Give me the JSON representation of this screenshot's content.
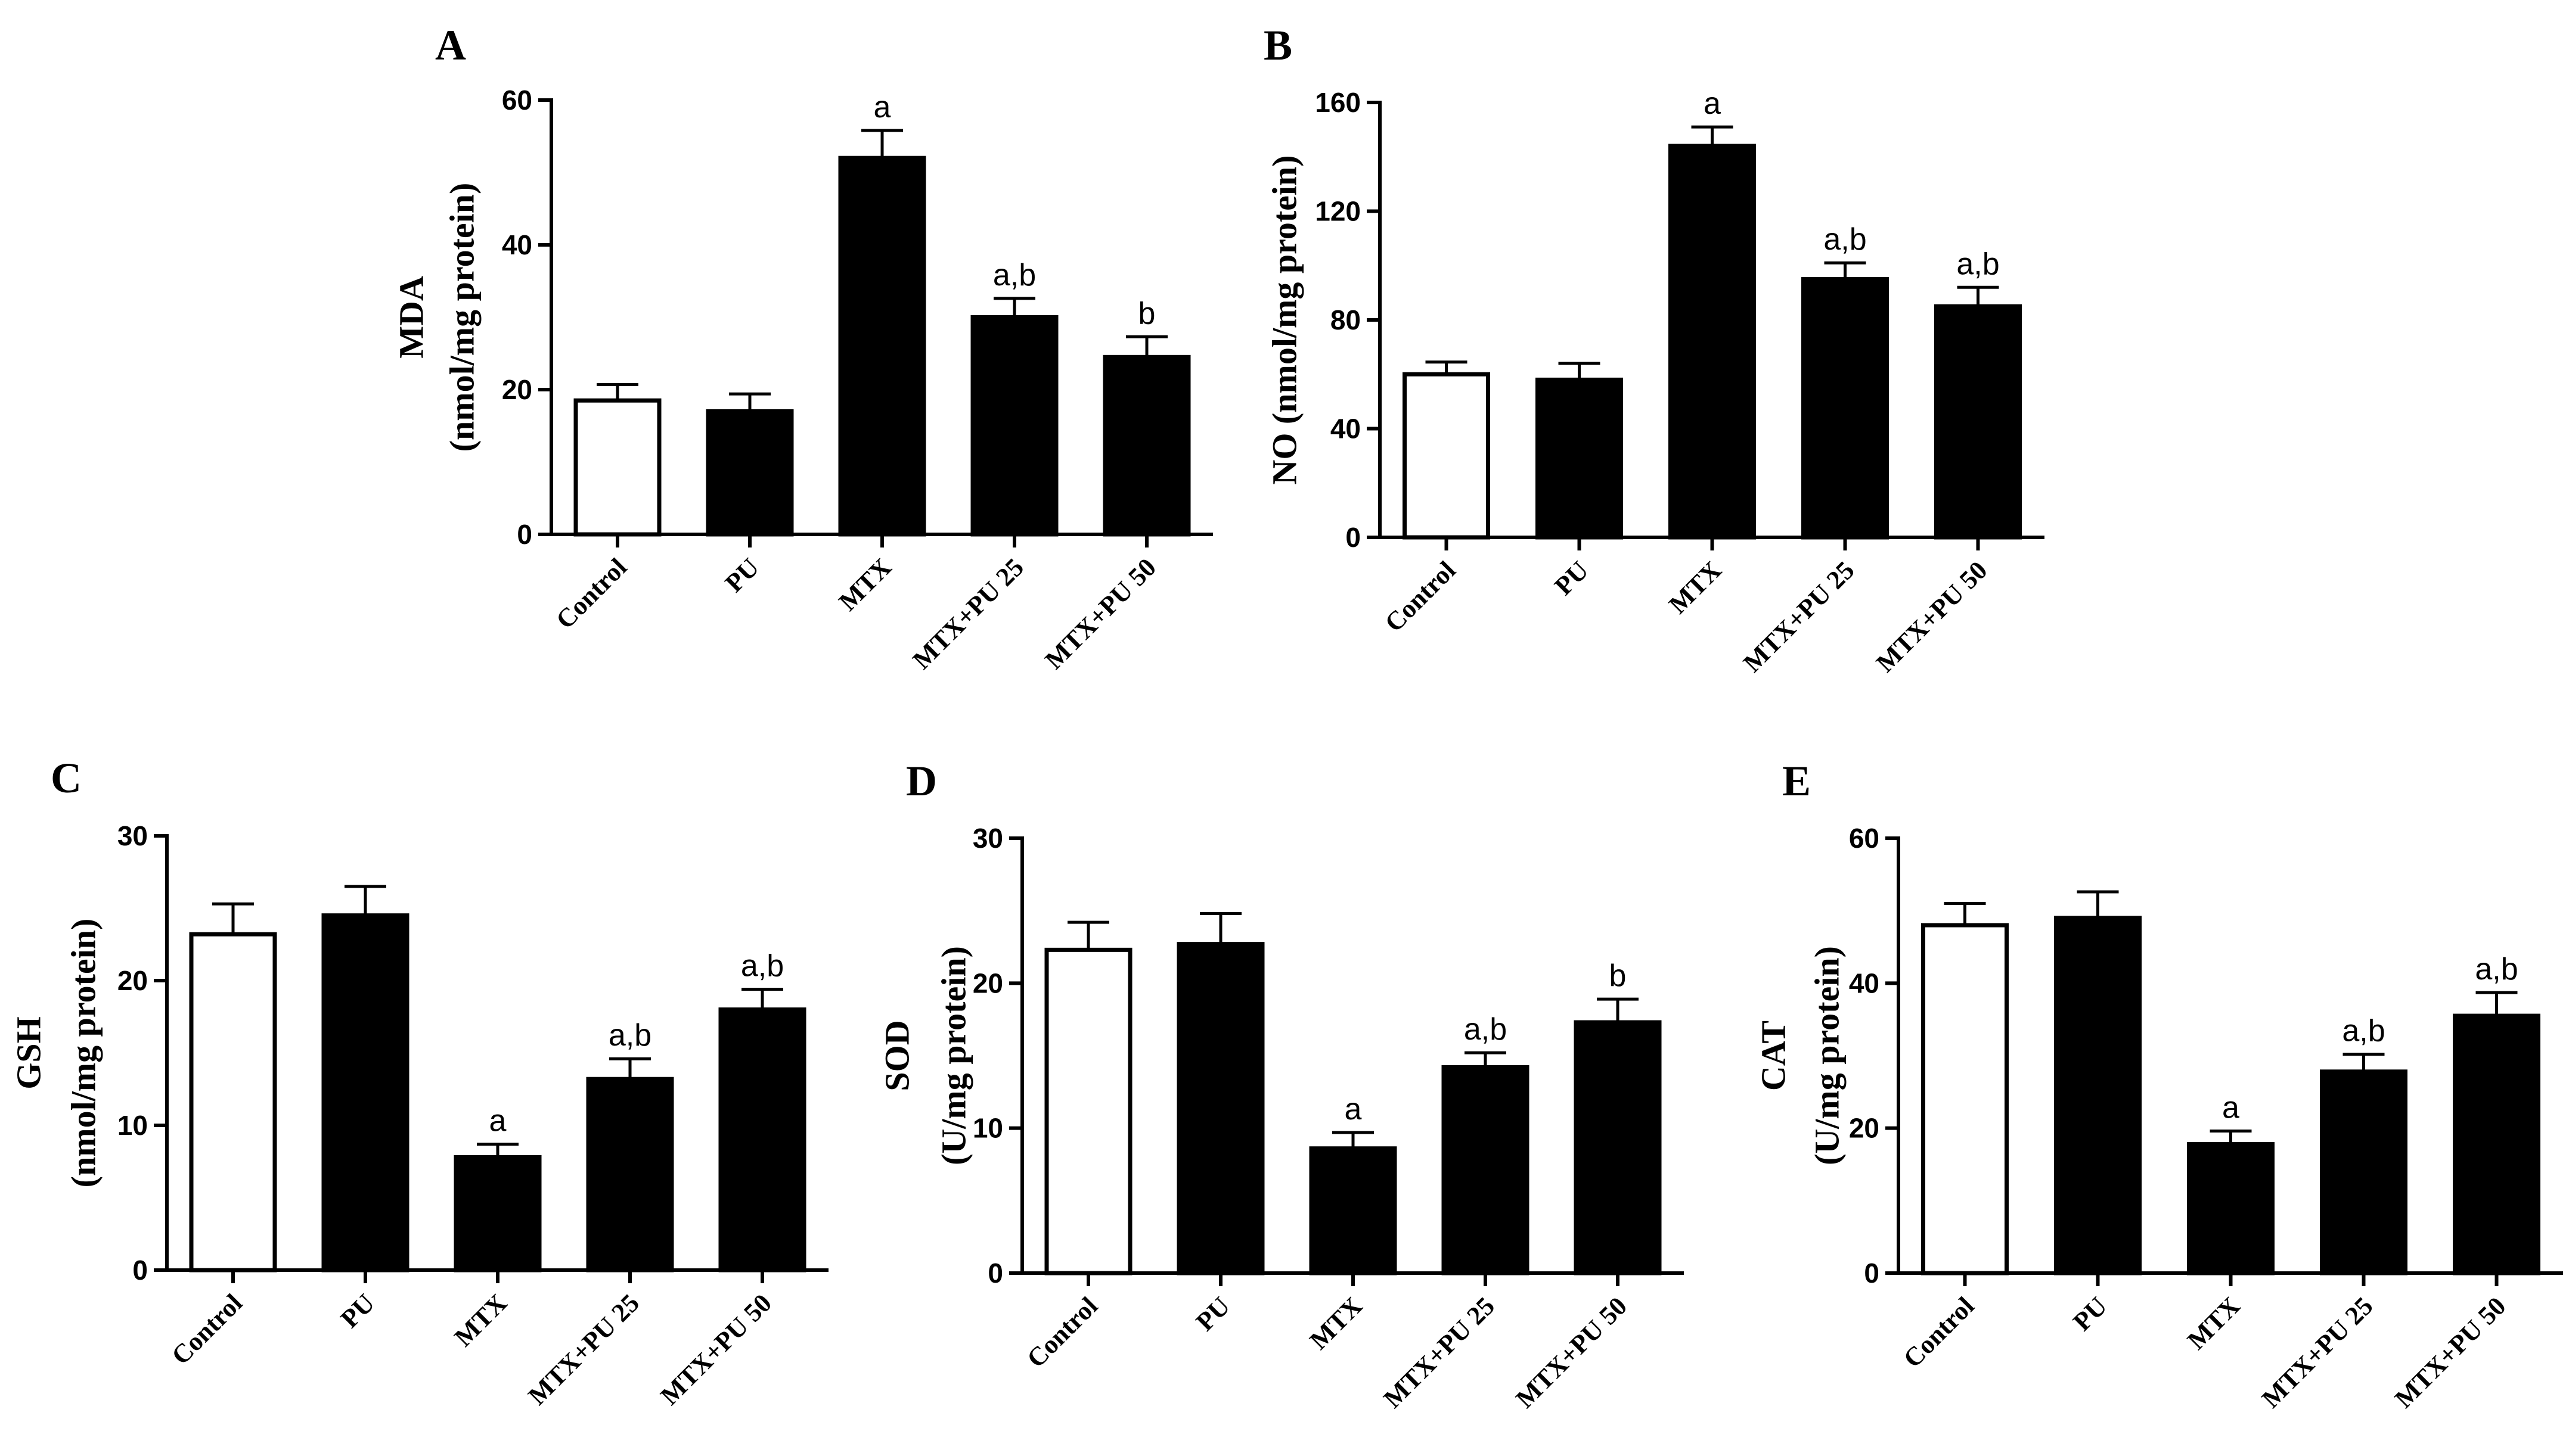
{
  "chart_data": [
    {
      "id": "A",
      "type": "bar",
      "panel_label": "A",
      "ylabel_lines": [
        "MDA",
        "(nmol/mg protein)"
      ],
      "categories": [
        "Control",
        "PU",
        "MTX",
        "MTX+PU 25",
        "MTX+PU 50"
      ],
      "values": [
        18.5,
        17,
        52,
        30,
        24.5
      ],
      "errors": [
        2.2,
        2.4,
        3.8,
        2.6,
        2.8
      ],
      "significance": [
        "",
        "",
        "a",
        "a,b",
        "b"
      ],
      "ylim": [
        0,
        60
      ],
      "yticks": [
        0,
        20,
        40,
        60
      ],
      "bar_styles": [
        "open",
        "filled",
        "filled",
        "filled",
        "filled"
      ]
    },
    {
      "id": "B",
      "type": "bar",
      "panel_label": "B",
      "ylabel_lines": [
        "NO (nmol/mg protein)"
      ],
      "categories": [
        "Control",
        "PU",
        "MTX",
        "MTX+PU 25",
        "MTX+PU 50"
      ],
      "values": [
        60,
        58,
        144,
        95,
        85
      ],
      "errors": [
        4.5,
        6,
        7,
        6,
        7
      ],
      "significance": [
        "",
        "",
        "a",
        "a,b",
        "a,b"
      ],
      "ylim": [
        0,
        160
      ],
      "yticks": [
        0,
        40,
        80,
        120,
        160
      ],
      "bar_styles": [
        "open",
        "filled",
        "filled",
        "filled",
        "filled"
      ]
    },
    {
      "id": "C",
      "type": "bar",
      "panel_label": "C",
      "ylabel_lines": [
        "GSH",
        "(nmol/mg protein)"
      ],
      "categories": [
        "Control",
        "PU",
        "MTX",
        "MTX+PU 25",
        "MTX+PU 50"
      ],
      "values": [
        23.2,
        24.5,
        7.8,
        13.2,
        18
      ],
      "errors": [
        2.1,
        2,
        0.9,
        1.4,
        1.4
      ],
      "significance": [
        "",
        "",
        "a",
        "a,b",
        "a,b"
      ],
      "ylim": [
        0,
        30
      ],
      "yticks": [
        0,
        10,
        20,
        30
      ],
      "bar_styles": [
        "open",
        "filled",
        "filled",
        "filled",
        "filled"
      ]
    },
    {
      "id": "D",
      "type": "bar",
      "panel_label": "D",
      "ylabel_lines": [
        "SOD",
        "(U/mg protein)"
      ],
      "categories": [
        "Control",
        "PU",
        "MTX",
        "MTX+PU 25",
        "MTX+PU 50"
      ],
      "values": [
        22.3,
        22.7,
        8.6,
        14.2,
        17.3
      ],
      "errors": [
        1.9,
        2.1,
        1.1,
        1,
        1.6
      ],
      "significance": [
        "",
        "",
        "a",
        "a,b",
        "b"
      ],
      "ylim": [
        0,
        30
      ],
      "yticks": [
        0,
        10,
        20,
        30
      ],
      "bar_styles": [
        "open",
        "filled",
        "filled",
        "filled",
        "filled"
      ]
    },
    {
      "id": "E",
      "type": "bar",
      "panel_label": "E",
      "ylabel_lines": [
        "CAT",
        "(U/mg protein)"
      ],
      "categories": [
        "Control",
        "PU",
        "MTX",
        "MTX+PU 25",
        "MTX+PU 50"
      ],
      "values": [
        48,
        49,
        17.8,
        27.8,
        35.5
      ],
      "errors": [
        3,
        3.6,
        1.8,
        2.4,
        3.2
      ],
      "significance": [
        "",
        "",
        "a",
        "a,b",
        "a,b"
      ],
      "ylim": [
        0,
        60
      ],
      "yticks": [
        0,
        20,
        40,
        60
      ],
      "bar_styles": [
        "open",
        "filled",
        "filled",
        "filled",
        "filled"
      ]
    }
  ]
}
